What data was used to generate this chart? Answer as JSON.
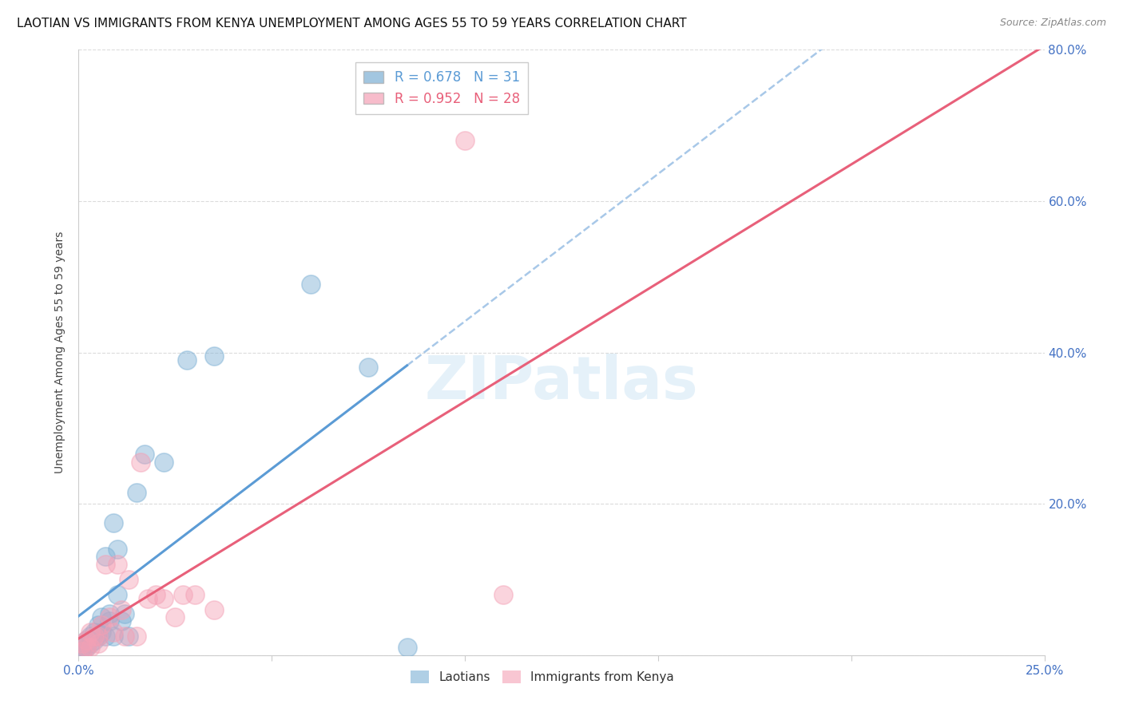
{
  "title": "LAOTIAN VS IMMIGRANTS FROM KENYA UNEMPLOYMENT AMONG AGES 55 TO 59 YEARS CORRELATION CHART",
  "source": "Source: ZipAtlas.com",
  "ylabel": "Unemployment Among Ages 55 to 59 years",
  "xlim": [
    0.0,
    0.25
  ],
  "ylim": [
    0.0,
    0.8
  ],
  "xticks": [
    0.0,
    0.05,
    0.1,
    0.15,
    0.2,
    0.25
  ],
  "xticklabels_show": [
    "0.0%",
    "",
    "",
    "",
    "",
    "25.0%"
  ],
  "yticks": [
    0.0,
    0.2,
    0.4,
    0.6,
    0.8
  ],
  "right_yticklabels": [
    "",
    "20.0%",
    "40.0%",
    "60.0%",
    "80.0%"
  ],
  "legend_entries": [
    {
      "label": "R = 0.678   N = 31",
      "color": "#a8c4e0"
    },
    {
      "label": "R = 0.952   N = 28",
      "color": "#f4a7b9"
    }
  ],
  "blue_color": "#7bafd4",
  "pink_color": "#f4a0b5",
  "blue_line_color": "#5b9bd5",
  "pink_line_color": "#e8607a",
  "dashed_line_color": "#a8c8e8",
  "watermark": "ZIPatlas",
  "laotians_x": [
    0.001,
    0.001,
    0.002,
    0.002,
    0.003,
    0.003,
    0.004,
    0.004,
    0.005,
    0.005,
    0.006,
    0.006,
    0.007,
    0.007,
    0.008,
    0.008,
    0.009,
    0.009,
    0.01,
    0.01,
    0.011,
    0.012,
    0.013,
    0.015,
    0.017,
    0.022,
    0.028,
    0.035,
    0.06,
    0.075,
    0.085
  ],
  "laotians_y": [
    0.005,
    0.01,
    0.01,
    0.02,
    0.015,
    0.025,
    0.02,
    0.03,
    0.025,
    0.04,
    0.03,
    0.05,
    0.025,
    0.13,
    0.045,
    0.055,
    0.025,
    0.175,
    0.08,
    0.14,
    0.045,
    0.055,
    0.025,
    0.215,
    0.265,
    0.255,
    0.39,
    0.395,
    0.49,
    0.38,
    0.01
  ],
  "kenya_x": [
    0.001,
    0.001,
    0.002,
    0.002,
    0.003,
    0.003,
    0.004,
    0.005,
    0.005,
    0.006,
    0.007,
    0.008,
    0.009,
    0.01,
    0.011,
    0.012,
    0.013,
    0.015,
    0.016,
    0.018,
    0.02,
    0.022,
    0.025,
    0.027,
    0.03,
    0.035,
    0.1,
    0.11
  ],
  "kenya_y": [
    0.005,
    0.015,
    0.01,
    0.02,
    0.01,
    0.03,
    0.025,
    0.015,
    0.025,
    0.04,
    0.12,
    0.05,
    0.03,
    0.12,
    0.06,
    0.025,
    0.1,
    0.025,
    0.255,
    0.075,
    0.08,
    0.075,
    0.05,
    0.08,
    0.08,
    0.06,
    0.68,
    0.08
  ],
  "title_fontsize": 11,
  "axis_label_fontsize": 10,
  "tick_fontsize": 11,
  "tick_color": "#4472c4",
  "grid_color": "#d8d8d8"
}
